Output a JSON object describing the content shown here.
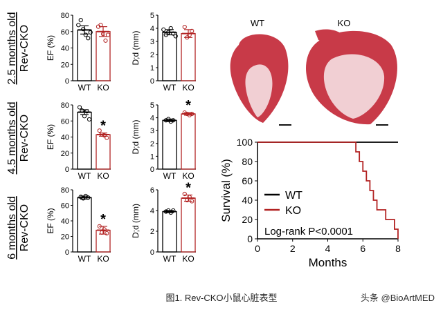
{
  "caption": "图1. Rev-CKO小鼠心脏表型",
  "watermark": "头条 @BioArtMED",
  "colors": {
    "wt": "#000000",
    "ko": "#b22222",
    "tissue": "#c83a48",
    "tissue_light": "#f1cfd3"
  },
  "histology": {
    "wt_label": "WT",
    "ko_label": "KO"
  },
  "chart_data": [
    {
      "type": "bar",
      "row_label": [
        "2.5 months old",
        "Rev-CKO"
      ],
      "ylabel": "EF (%)",
      "categories": [
        "WT",
        "KO"
      ],
      "values": [
        62,
        60
      ],
      "errors": [
        5,
        6
      ],
      "ylim": [
        0,
        80
      ],
      "yticks": [
        0,
        20,
        40,
        60,
        80
      ],
      "significance": [
        "",
        ""
      ],
      "points": [
        [
          68,
          74,
          63,
          56,
          52,
          59
        ],
        [
          66,
          68,
          57,
          49,
          56
        ]
      ]
    },
    {
      "type": "bar",
      "ylabel": "D;d (mm)",
      "categories": [
        "WT",
        "KO"
      ],
      "values": [
        3.7,
        3.6
      ],
      "errors": [
        0.2,
        0.3
      ],
      "ylim": [
        0,
        5
      ],
      "yticks": [
        0,
        1,
        2,
        3,
        4,
        5
      ],
      "significance": [
        "",
        ""
      ],
      "points": [
        [
          3.9,
          3.5,
          3.7,
          4.0,
          3.6,
          3.4
        ],
        [
          4.1,
          3.3,
          3.5,
          3.8
        ]
      ]
    },
    {
      "type": "bar",
      "row_label": [
        "4.5 months old",
        "Rev-CKO"
      ],
      "ylabel": "EF (%)",
      "categories": [
        "WT",
        "KO"
      ],
      "values": [
        71,
        43
      ],
      "errors": [
        3,
        2
      ],
      "ylim": [
        0,
        80
      ],
      "yticks": [
        0,
        20,
        40,
        60,
        80
      ],
      "significance": [
        "",
        "*"
      ],
      "points": [
        [
          77,
          73,
          66,
          72,
          62
        ],
        [
          48,
          43,
          42,
          39
        ]
      ]
    },
    {
      "type": "bar",
      "ylabel": "D;d (mm)",
      "categories": [
        "WT",
        "KO"
      ],
      "values": [
        3.8,
        4.3
      ],
      "errors": [
        0.1,
        0.1
      ],
      "ylim": [
        0,
        5
      ],
      "yticks": [
        0,
        1,
        2,
        3,
        4,
        5
      ],
      "significance": [
        "",
        "*"
      ],
      "points": [
        [
          3.8,
          3.9,
          3.7,
          3.8
        ],
        [
          4.4,
          4.3,
          4.2,
          4.3
        ]
      ]
    },
    {
      "type": "bar",
      "row_label": [
        "6 months old",
        "Rev-CKO"
      ],
      "ylabel": "EF (%)",
      "categories": [
        "WT",
        "KO"
      ],
      "values": [
        70,
        28
      ],
      "errors": [
        2,
        5
      ],
      "ylim": [
        0,
        80
      ],
      "yticks": [
        0,
        20,
        40,
        60,
        80
      ],
      "significance": [
        "",
        "*"
      ],
      "points": [
        [
          71,
          69,
          72,
          70
        ],
        [
          33,
          25,
          29,
          24
        ]
      ]
    },
    {
      "type": "bar",
      "ylabel": "D;d (mm)",
      "categories": [
        "WT",
        "KO"
      ],
      "values": [
        3.9,
        5.2
      ],
      "errors": [
        0.1,
        0.3
      ],
      "ylim": [
        0,
        6
      ],
      "yticks": [
        0,
        2,
        4,
        6
      ],
      "significance": [
        "",
        "*"
      ],
      "points": [
        [
          3.9,
          4.0,
          3.8,
          4.0
        ],
        [
          5.6,
          5.0,
          5.3,
          4.9
        ]
      ]
    },
    {
      "type": "line",
      "xlabel": "Months",
      "ylabel": "Survival (%)",
      "xlim": [
        0,
        8
      ],
      "ylim": [
        0,
        100
      ],
      "xticks": [
        0,
        2,
        4,
        6,
        8
      ],
      "yticks": [
        0,
        20,
        40,
        60,
        80,
        100
      ],
      "annotation": "Log-rank P<0.0001",
      "legend_placement": "lower-left",
      "series": [
        {
          "name": "WT",
          "x": [
            0,
            8
          ],
          "y": [
            100,
            100
          ]
        },
        {
          "name": "KO",
          "x": [
            0,
            5.6,
            5.6,
            5.8,
            5.8,
            6.0,
            6.0,
            6.2,
            6.2,
            6.4,
            6.4,
            6.6,
            6.6,
            6.8,
            6.8,
            7.3,
            7.3,
            7.8,
            7.8,
            8.0,
            8.0
          ],
          "y": [
            100,
            100,
            90,
            90,
            80,
            80,
            70,
            70,
            60,
            60,
            50,
            50,
            40,
            40,
            30,
            30,
            20,
            20,
            10,
            10,
            0
          ]
        }
      ]
    }
  ]
}
